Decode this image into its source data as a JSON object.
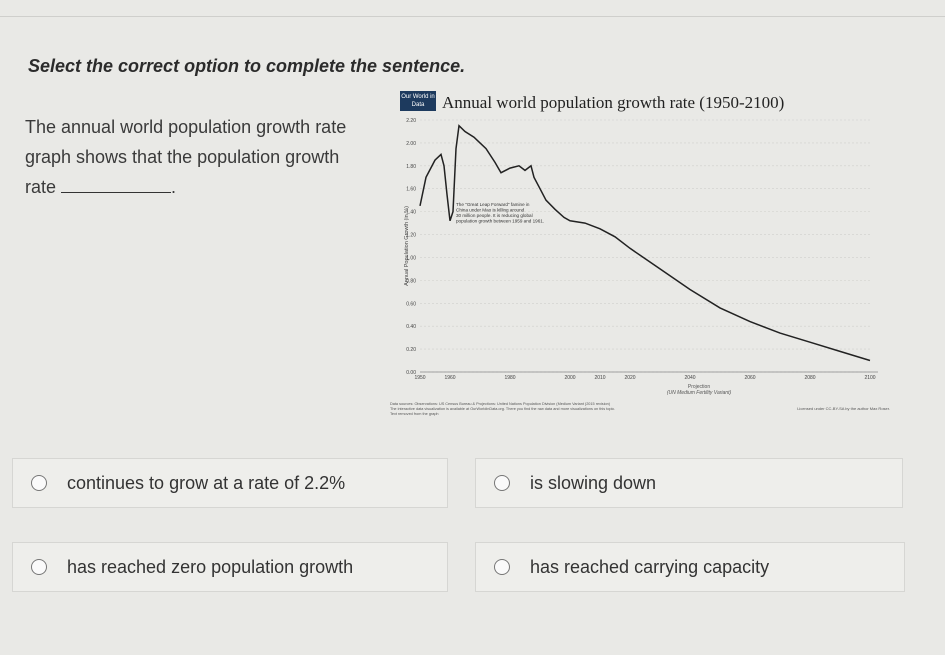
{
  "instruction": "Select the correct option to complete the sentence.",
  "question": {
    "text": "The annual world population growth rate graph shows that the population growth rate",
    "end": "."
  },
  "options": [
    {
      "label": "continues to grow at a rate of 2.2%"
    },
    {
      "label": "is slowing down"
    },
    {
      "label": "has reached zero population growth"
    },
    {
      "label": "has reached carrying capacity"
    }
  ],
  "chart_data": {
    "type": "line",
    "title": "Annual world population growth rate (1950-2100)",
    "logo_text": "Our World in Data",
    "ylabel": "Annual Population Growth (in %)",
    "x_ticks": [
      "1950",
      "1960",
      "1980",
      "2000",
      "2010",
      "2020",
      "2040",
      "2060",
      "2080",
      "2100"
    ],
    "y_ticks": [
      "0.00",
      "0.20",
      "0.40",
      "0.60",
      "0.80",
      "1.00",
      "1.20",
      "1.40",
      "1.60",
      "1.80",
      "2.00",
      "2.20"
    ],
    "ylim": [
      0,
      2.2
    ],
    "xlim": [
      1950,
      2100
    ],
    "projection_label": "Projection",
    "projection_sublabel": "(UN Medium Fertility Variant)",
    "annotation": [
      "The \"Great Leap Forward\" famine in",
      "China under Mao is killing around",
      "30 million people. It is reducing global",
      "population growth between 1959 and 1961."
    ],
    "source_line1": "Data sources: Observations: US Census Bureau & Projections: United Nations Population Division (Medium Variant (2015 revision)",
    "source_line2": "The interactive data visualization is available at OurWorldinData.org. There you find the raw data and more visualizations on this topic.",
    "source_line3": "Text removed from the graph",
    "license": "Licensed under CC-BY-SA by the author Max Roser.",
    "series": [
      {
        "color": "#222222",
        "x": [
          1950,
          1952,
          1955,
          1957,
          1958,
          1959,
          1960,
          1961,
          1962,
          1963,
          1965,
          1968,
          1970,
          1972,
          1975,
          1977,
          1980,
          1983,
          1985,
          1987,
          1988,
          1990,
          1992,
          1995,
          1998,
          2000,
          2005,
          2010,
          2015,
          2020,
          2030,
          2040,
          2050,
          2060,
          2070,
          2080,
          2090,
          2100
        ],
        "y": [
          1.45,
          1.7,
          1.85,
          1.9,
          1.8,
          1.55,
          1.32,
          1.4,
          1.95,
          2.15,
          2.1,
          2.05,
          2.0,
          1.95,
          1.83,
          1.74,
          1.78,
          1.8,
          1.76,
          1.8,
          1.7,
          1.6,
          1.5,
          1.42,
          1.35,
          1.32,
          1.3,
          1.25,
          1.18,
          1.08,
          0.9,
          0.72,
          0.56,
          0.44,
          0.34,
          0.26,
          0.18,
          0.1
        ]
      }
    ]
  }
}
